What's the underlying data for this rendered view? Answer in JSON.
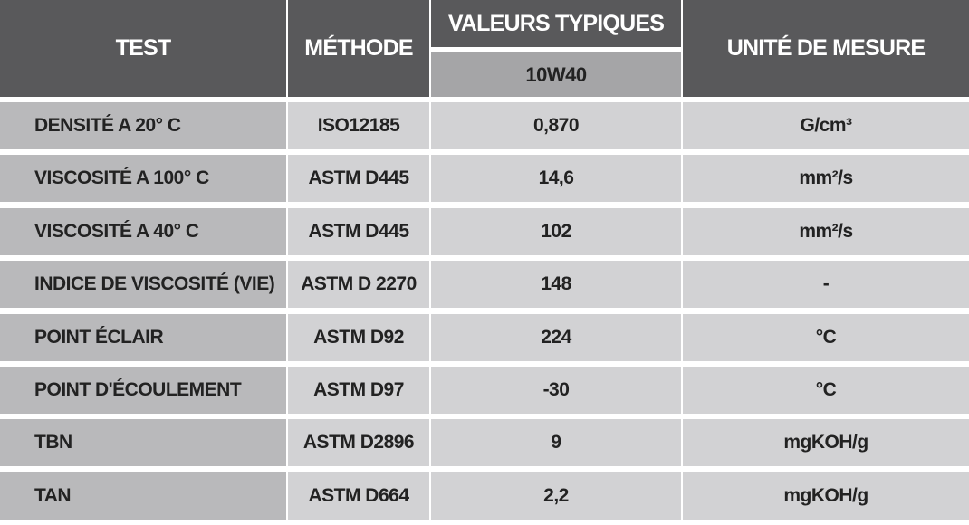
{
  "table": {
    "header": {
      "test": "TEST",
      "method": "MÉTHODE",
      "values": "VALEURS TYPIQUES",
      "grade": "10W40",
      "unit": "UNITÉ DE MESURE"
    },
    "rows": [
      [
        "DENSITÉ A 20° C",
        "ISO12185",
        "0,870",
        "G/cm³"
      ],
      [
        "VISCOSITÉ A 100° C",
        "ASTM D445",
        "14,6",
        "mm²/s"
      ],
      [
        "VISCOSITÉ A 40° C",
        "ASTM D445",
        "102",
        "mm²/s"
      ],
      [
        "INDICE DE VISCOSITÉ (VIE)",
        "ASTM D 2270",
        "148",
        "-"
      ],
      [
        "POINT ÉCLAIR",
        "ASTM D92",
        "224",
        "°C"
      ],
      [
        "POINT D'ÉCOULEMENT",
        "ASTM D97",
        "-30",
        "°C"
      ],
      [
        "TBN",
        "ASTM D2896",
        "9",
        "mgKOH/g"
      ],
      [
        "TAN",
        "ASTM D664",
        "2,2",
        "mgKOH/g"
      ]
    ]
  }
}
